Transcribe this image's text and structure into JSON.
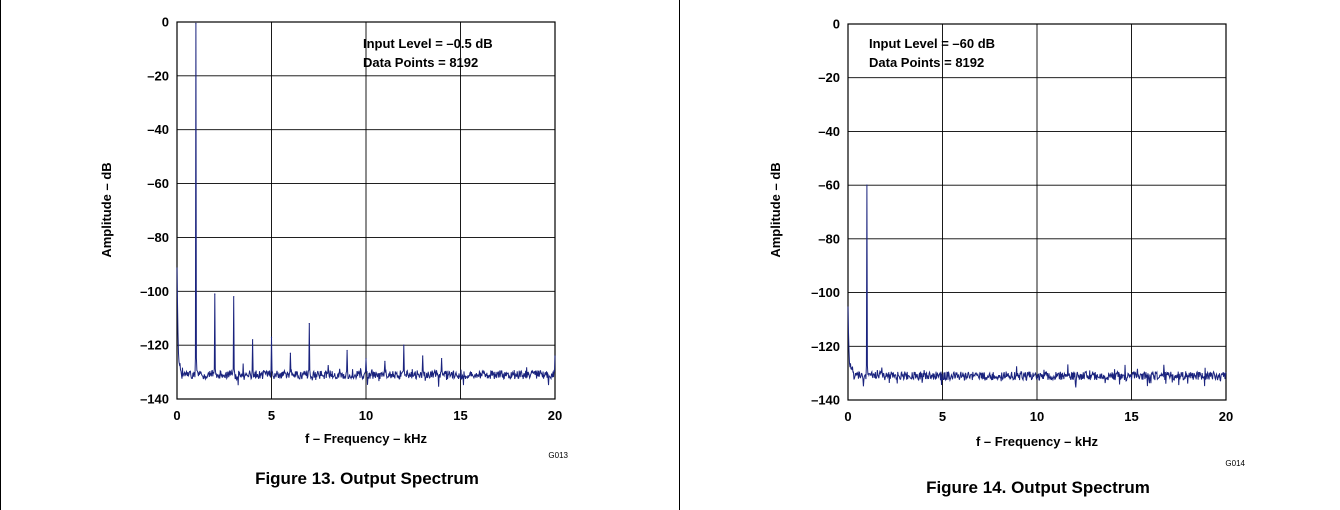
{
  "chart_data": [
    {
      "type": "line",
      "caption": "Figure 13. Output Spectrum",
      "figure_code": "G013",
      "xlabel": "f – Frequency – kHz",
      "ylabel": "Amplitude – dB",
      "xlim": [
        0,
        20
      ],
      "ylim": [
        -140,
        0
      ],
      "xticks": [
        "0",
        "5",
        "10",
        "15",
        "20"
      ],
      "yticks": [
        "0",
        "–20",
        "–40",
        "–60",
        "–80",
        "–100",
        "–120",
        "–140"
      ],
      "grid": true,
      "annotations": [
        "Input Level = –0.5 dB",
        "Data Points = 8192"
      ],
      "series": [
        {
          "color": "#1a237e",
          "noise_floor_db": -131,
          "dc_rise_db": -93,
          "peaks": [
            {
              "x": 1,
              "y": -0.5
            },
            {
              "x": 2,
              "y": -101
            },
            {
              "x": 3,
              "y": -102
            },
            {
              "x": 4,
              "y": -118
            },
            {
              "x": 5,
              "y": -117
            },
            {
              "x": 6,
              "y": -123
            },
            {
              "x": 7,
              "y": -112
            },
            {
              "x": 9,
              "y": -122
            },
            {
              "x": 10,
              "y": -125
            },
            {
              "x": 11,
              "y": -126
            },
            {
              "x": 12,
              "y": -120
            },
            {
              "x": 13,
              "y": -124
            },
            {
              "x": 14,
              "y": -125
            },
            {
              "x": 20,
              "y": -124
            }
          ]
        }
      ]
    },
    {
      "type": "line",
      "caption": "Figure 14. Output Spectrum",
      "figure_code": "G014",
      "xlabel": "f – Frequency – kHz",
      "ylabel": "Amplitude – dB",
      "xlim": [
        0,
        20
      ],
      "ylim": [
        -140,
        0
      ],
      "xticks": [
        "0",
        "5",
        "10",
        "15",
        "20"
      ],
      "yticks": [
        "0",
        "–20",
        "–40",
        "–60",
        "–80",
        "–100",
        "–120",
        "–140"
      ],
      "grid": true,
      "annotations": [
        "Input Level = –60 dB",
        "Data Points = 8192"
      ],
      "series": [
        {
          "color": "#1a237e",
          "noise_floor_db": -131,
          "dc_rise_db": -112,
          "peaks": [
            {
              "x": 1,
              "y": -60
            }
          ]
        }
      ]
    }
  ]
}
